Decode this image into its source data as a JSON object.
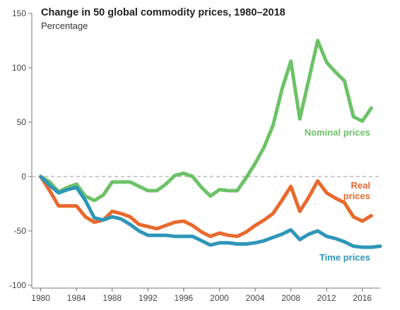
{
  "chart_data": {
    "type": "line",
    "title": "Change in 50 global commodity prices, 1980–2018",
    "subtitle": "Percentage",
    "ylim": [
      -100,
      150
    ],
    "xlim": [
      1979,
      2018
    ],
    "y_ticks": [
      150,
      100,
      50,
      0,
      -50,
      -100
    ],
    "x_ticks": [
      "1980",
      "1984",
      "1988",
      "1992",
      "1996",
      "2000",
      "2004",
      "2008",
      "2012",
      "2016"
    ],
    "zero_line": "dashed",
    "series": [
      {
        "name": "Nominal prices",
        "color": "#6cc266",
        "x": [
          1980,
          1981,
          1982,
          1983,
          1984,
          1985,
          1986,
          1987,
          1988,
          1989,
          1990,
          1991,
          1992,
          1993,
          1994,
          1995,
          1996,
          1997,
          1998,
          1999,
          2000,
          2001,
          2002,
          2003,
          2004,
          2005,
          2006,
          2007,
          2008,
          2009,
          2010,
          2011,
          2012,
          2013,
          2014,
          2015,
          2016,
          2017,
          2018
        ],
        "values": [
          0,
          -5,
          -14,
          -10,
          -7,
          -18,
          -22,
          -17,
          -5,
          -5,
          -5,
          -9,
          -13,
          -13,
          -7,
          1,
          3,
          0,
          -10,
          -18,
          -12,
          -13,
          -13,
          -1,
          12,
          27,
          47,
          80,
          106,
          53,
          89,
          125,
          105,
          96,
          88,
          55,
          51,
          63,
          null
        ]
      },
      {
        "name": "Real prices",
        "color": "#e8692e",
        "x": [
          1980,
          1981,
          1982,
          1983,
          1984,
          1985,
          1986,
          1987,
          1988,
          1989,
          1990,
          1991,
          1992,
          1993,
          1994,
          1995,
          1996,
          1997,
          1998,
          1999,
          2000,
          2001,
          2002,
          2003,
          2004,
          2005,
          2006,
          2007,
          2008,
          2009,
          2010,
          2011,
          2012,
          2013,
          2014,
          2015,
          2016,
          2017,
          2018
        ],
        "values": [
          0,
          -13,
          -27,
          -27,
          -27,
          -37,
          -42,
          -40,
          -32,
          -34,
          -37,
          -44,
          -46,
          -48,
          -45,
          -42,
          -41,
          -45,
          -51,
          -55,
          -52,
          -54,
          -55,
          -51,
          -45,
          -40,
          -34,
          -22,
          -9,
          -32,
          -19,
          -4,
          -15,
          -20,
          -24,
          -37,
          -41,
          -36,
          null
        ]
      },
      {
        "name": "Time prices",
        "color": "#2e96b8",
        "x": [
          1980,
          1981,
          1982,
          1983,
          1984,
          1985,
          1986,
          1987,
          1988,
          1989,
          1990,
          1991,
          1992,
          1993,
          1994,
          1995,
          1996,
          1997,
          1998,
          1999,
          2000,
          2001,
          2002,
          2003,
          2004,
          2005,
          2006,
          2007,
          2008,
          2009,
          2010,
          2011,
          2012,
          2013,
          2014,
          2015,
          2016,
          2017,
          2018
        ],
        "values": [
          0,
          -8,
          -15,
          -12,
          -10,
          -22,
          -38,
          -40,
          -37,
          -39,
          -44,
          -50,
          -54,
          -54,
          -54,
          -55,
          -55,
          -55,
          -59,
          -63,
          -61,
          -61,
          -62,
          -62,
          -61,
          -59,
          -56,
          -53,
          -49,
          -58,
          -53,
          -50,
          -55,
          -57,
          -60,
          -64,
          -65,
          -65,
          -64
        ]
      }
    ]
  }
}
